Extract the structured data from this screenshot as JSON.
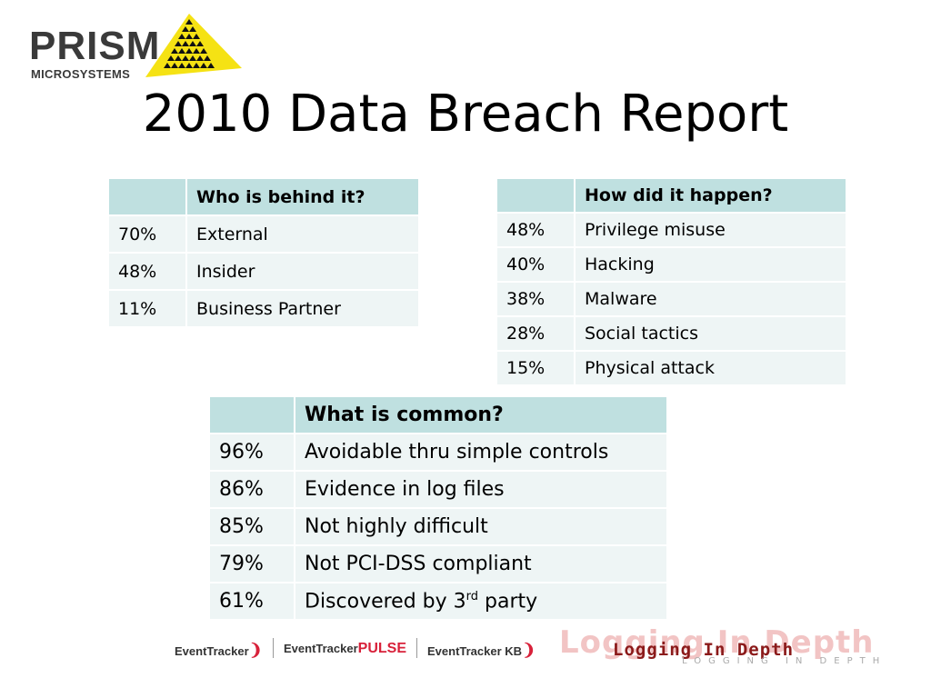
{
  "logo": {
    "word": "PRISM",
    "subword": "MICROSYSTEMS"
  },
  "title": "2010 Data Breach Report",
  "who": {
    "header": "Who is behind it?",
    "rows": [
      {
        "pct": "70%",
        "label": "External"
      },
      {
        "pct": "48%",
        "label": "Insider"
      },
      {
        "pct": "11%",
        "label": "Business Partner"
      }
    ]
  },
  "how": {
    "header": "How did it happen?",
    "rows": [
      {
        "pct": "48%",
        "label": "Privilege misuse"
      },
      {
        "pct": "40%",
        "label": "Hacking"
      },
      {
        "pct": "38%",
        "label": "Malware"
      },
      {
        "pct": "28%",
        "label": "Social tactics"
      },
      {
        "pct": "15%",
        "label": "Physical attack"
      }
    ]
  },
  "common": {
    "header": "What is common?",
    "rows": [
      {
        "pct": "96%",
        "label": "Avoidable thru simple controls"
      },
      {
        "pct": "86%",
        "label": "Evidence in log files"
      },
      {
        "pct": "85%",
        "label": "Not highly difficult"
      },
      {
        "pct": "79%",
        "label": "Not PCI-DSS compliant"
      },
      {
        "pct": "61%",
        "label": "Discovered by 3",
        "sup": "rd",
        "tail": " party"
      }
    ]
  },
  "footer": {
    "et1": "EventTracker",
    "et2a": "EventTracker",
    "et2b": "PULSE",
    "et3a": "EventTracker",
    "et3b": "KB",
    "lid_main": "Logging In Depth",
    "lid_ghost": "Logging In Depth",
    "lid_sub": "LOGGING IN DEPTH"
  },
  "colors": {
    "header_fill": "#bfe0e0",
    "row_fill": "#eef5f5",
    "logo_yellow": "#f5e214",
    "brand_red": "#d8213a"
  }
}
